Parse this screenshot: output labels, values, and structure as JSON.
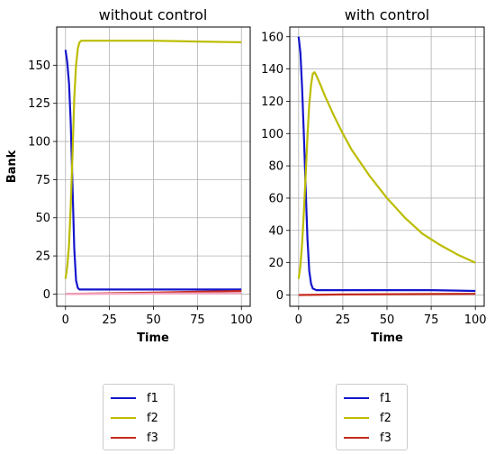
{
  "chart_data": [
    {
      "type": "line",
      "title": "without control",
      "xlabel": "Time",
      "ylabel": "Bank",
      "xlim": [
        -5,
        105
      ],
      "ylim": [
        -8,
        175
      ],
      "xticks": [
        0,
        25,
        50,
        75,
        100
      ],
      "yticks": [
        0,
        25,
        50,
        75,
        100,
        125,
        150
      ],
      "grid": true,
      "series": [
        {
          "name": "f1",
          "color": "#1515cc",
          "x": [
            0,
            1,
            2,
            3,
            4,
            5,
            6,
            7,
            8,
            9,
            10,
            15,
            20,
            30,
            50,
            75,
            100
          ],
          "y": [
            160,
            152,
            138,
            112,
            70,
            30,
            9,
            4,
            3,
            3,
            3,
            3,
            3,
            3,
            3,
            3,
            3
          ]
        },
        {
          "name": "f2",
          "color": "#bcbc00",
          "x": [
            0,
            1,
            2,
            3,
            4,
            5,
            6,
            7,
            8,
            9,
            10,
            15,
            25,
            50,
            75,
            100
          ],
          "y": [
            10,
            18,
            32,
            58,
            92,
            128,
            150,
            161,
            165,
            166,
            166,
            166,
            166,
            166,
            165.5,
            165
          ]
        },
        {
          "name": "f3",
          "color": "#c42b1c",
          "x": [
            0,
            25,
            50,
            75,
            100
          ],
          "y": [
            0,
            0.5,
            1,
            1.5,
            2
          ]
        },
        {
          "name": "",
          "color": "#f4a6c2",
          "x": [
            0,
            50,
            100
          ],
          "y": [
            0,
            0.3,
            0.6
          ]
        }
      ]
    },
    {
      "type": "line",
      "title": "with control",
      "xlabel": "Time",
      "ylabel": "",
      "xlim": [
        -5,
        105
      ],
      "ylim": [
        -7,
        166
      ],
      "xticks": [
        0,
        25,
        50,
        75,
        100
      ],
      "yticks": [
        0,
        20,
        40,
        60,
        80,
        100,
        120,
        140,
        160
      ],
      "grid": true,
      "series": [
        {
          "name": "f1",
          "color": "#1515cc",
          "x": [
            0,
            1,
            2,
            3,
            4,
            5,
            6,
            7,
            8,
            10,
            15,
            20,
            30,
            50,
            75,
            100
          ],
          "y": [
            160,
            150,
            128,
            98,
            65,
            35,
            15,
            7,
            4,
            3,
            3,
            3,
            3,
            3,
            3,
            2.5
          ]
        },
        {
          "name": "f2",
          "color": "#bcbc00",
          "x": [
            0,
            1,
            2,
            3,
            4,
            5,
            6,
            7,
            8,
            9,
            10,
            12,
            15,
            20,
            25,
            30,
            40,
            50,
            60,
            70,
            80,
            90,
            100
          ],
          "y": [
            10,
            18,
            32,
            52,
            75,
            98,
            118,
            130,
            137,
            138,
            136,
            131,
            123,
            111,
            100,
            90,
            74,
            60,
            48,
            38,
            31,
            25,
            20
          ]
        },
        {
          "name": "f3",
          "color": "#c42b1c",
          "x": [
            0,
            25,
            50,
            75,
            100
          ],
          "y": [
            0,
            0.3,
            0.5,
            0.6,
            0.7
          ]
        }
      ]
    }
  ],
  "legends": [
    {
      "items": [
        {
          "label": "f1",
          "color": "#1515cc"
        },
        {
          "label": "f2",
          "color": "#bcbc00"
        },
        {
          "label": "f3",
          "color": "#c42b1c"
        }
      ]
    },
    {
      "items": [
        {
          "label": "f1",
          "color": "#1515cc"
        },
        {
          "label": "f2",
          "color": "#bcbc00"
        },
        {
          "label": "f3",
          "color": "#c42b1c"
        }
      ]
    }
  ]
}
